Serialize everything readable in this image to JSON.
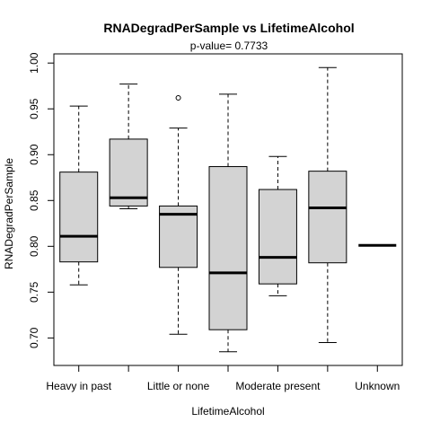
{
  "chart_data": {
    "type": "boxplot",
    "title": "RNADegradPerSample  vs  LifetimeAlcohol",
    "subtitle": "p-value= 0.7733",
    "xlabel": "LifetimeAlcohol",
    "ylabel": "RNADegradPerSample",
    "ylim": [
      0.67,
      1.01
    ],
    "yticks": [
      "0.70",
      "0.75",
      "0.80",
      "0.85",
      "0.90",
      "0.95",
      "1.00"
    ],
    "xtick_labels": [
      "Heavy in past",
      "Little or none",
      "Moderate present",
      "Unknown"
    ],
    "box_color": "#d3d3d3",
    "groups": [
      {
        "lower_whisker": 0.758,
        "q1": 0.783,
        "median": 0.811,
        "q3": 0.881,
        "upper_whisker": 0.953,
        "outliers": []
      },
      {
        "lower_whisker": 0.841,
        "q1": 0.844,
        "median": 0.853,
        "q3": 0.917,
        "upper_whisker": 0.977,
        "outliers": []
      },
      {
        "lower_whisker": 0.704,
        "q1": 0.777,
        "median": 0.835,
        "q3": 0.844,
        "upper_whisker": 0.929,
        "outliers": [
          0.962
        ]
      },
      {
        "lower_whisker": 0.685,
        "q1": 0.709,
        "median": 0.771,
        "q3": 0.887,
        "upper_whisker": 0.966,
        "outliers": []
      },
      {
        "lower_whisker": 0.746,
        "q1": 0.759,
        "median": 0.788,
        "q3": 0.862,
        "upper_whisker": 0.898,
        "outliers": []
      },
      {
        "lower_whisker": 0.695,
        "q1": 0.782,
        "median": 0.842,
        "q3": 0.882,
        "upper_whisker": 0.995,
        "outliers": []
      },
      {
        "lower_whisker": 0.801,
        "q1": 0.801,
        "median": 0.801,
        "q3": 0.801,
        "upper_whisker": 0.801,
        "outliers": []
      }
    ]
  }
}
